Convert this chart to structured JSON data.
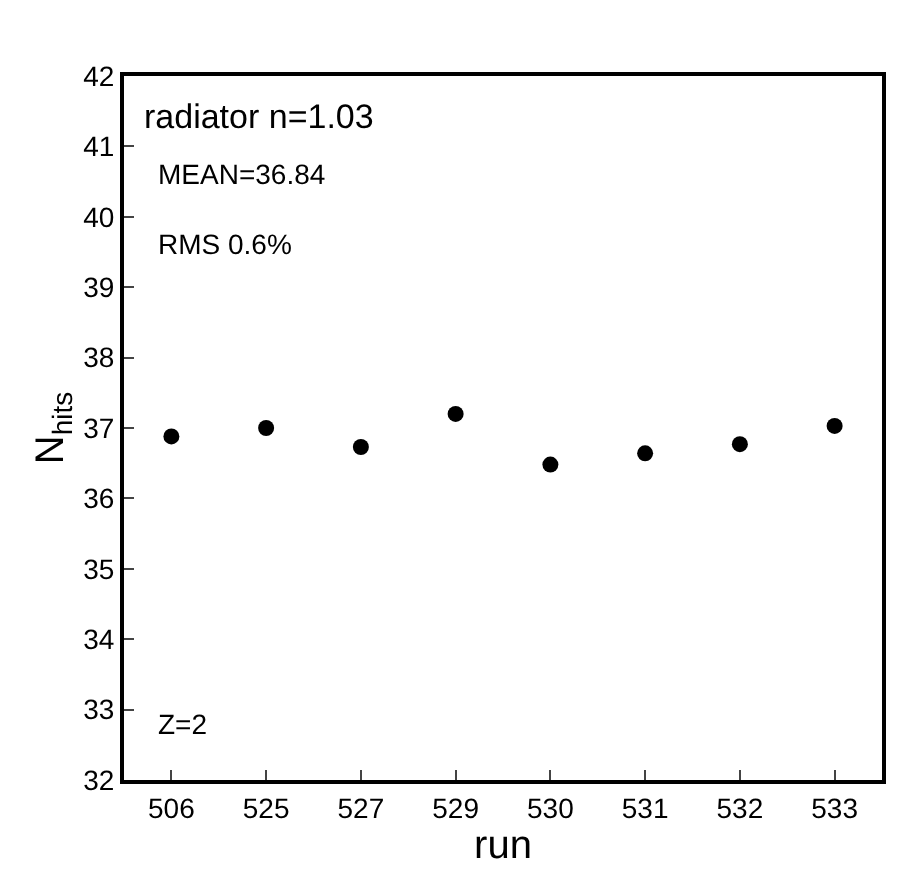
{
  "chart_data": {
    "type": "scatter",
    "title": "radiator n=1.03",
    "xlabel": "run",
    "ylabel": "N$_{hits}$",
    "categories": [
      "506",
      "525",
      "527",
      "529",
      "530",
      "531",
      "532",
      "533"
    ],
    "values": [
      36.88,
      37.0,
      36.73,
      37.2,
      36.48,
      36.64,
      36.77,
      37.03
    ],
    "color": "#000000",
    "marker": "circle",
    "ylim": [
      32,
      42
    ],
    "yticks": [
      32,
      33,
      34,
      35,
      36,
      37,
      38,
      39,
      40,
      41,
      42
    ],
    "legend": false,
    "annotations": [
      "MEAN=36.84",
      "RMS 0.6%",
      "Z=2"
    ]
  }
}
